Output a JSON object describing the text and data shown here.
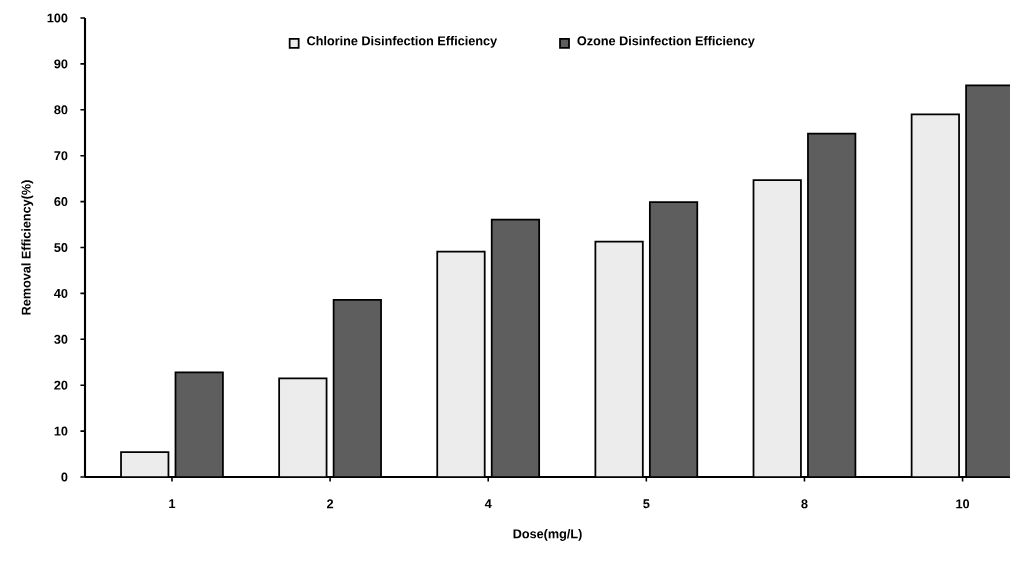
{
  "chart_data": {
    "type": "bar",
    "xlabel": "Dose(mg/L)",
    "ylabel": "Removal Efficiency(%)",
    "categories": [
      "1",
      "2",
      "4",
      "5",
      "8",
      "10"
    ],
    "series": [
      {
        "name": "Chlorine Disinfection Efficiency",
        "color": "#ececec",
        "values": [
          5.4,
          21.5,
          49.1,
          51.3,
          64.7,
          79.0
        ]
      },
      {
        "name": "Ozone Disinfection Efficiency",
        "color": "#5e5e5e",
        "values": [
          22.8,
          38.6,
          56.1,
          59.9,
          74.8,
          85.3
        ]
      }
    ],
    "ylim": [
      0,
      100
    ],
    "yticks": [
      0,
      10,
      20,
      30,
      40,
      50,
      60,
      70,
      80,
      90,
      100
    ],
    "grid": false,
    "legend": "top"
  }
}
